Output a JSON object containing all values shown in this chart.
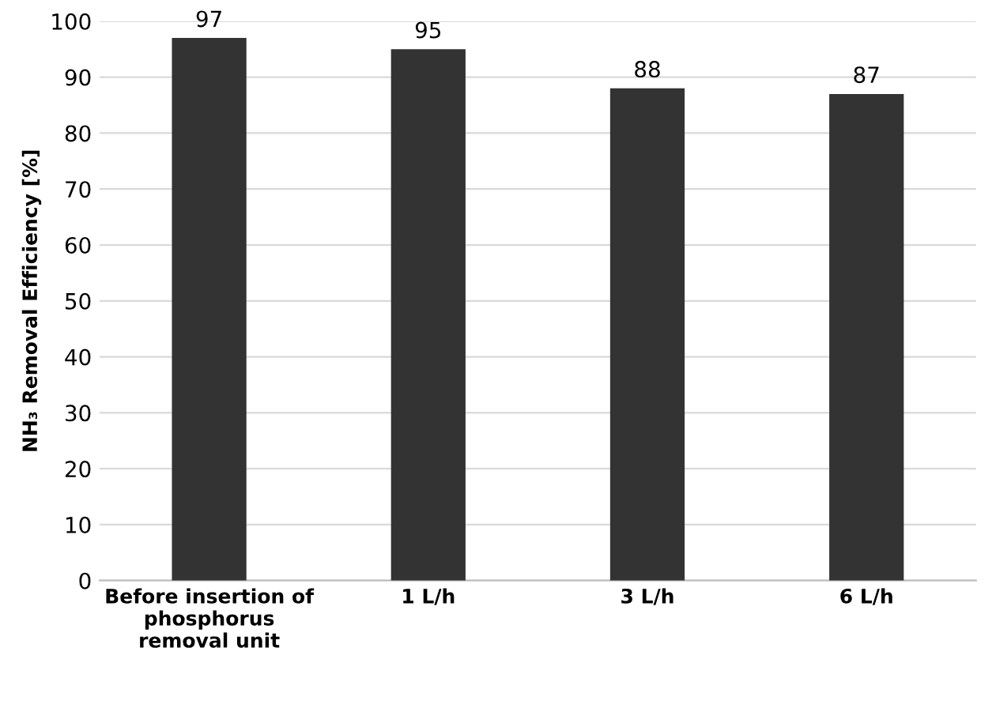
{
  "chart_data": {
    "type": "bar",
    "categories": [
      "Before insertion of\nphosphorus\nremoval unit",
      "1 L/h",
      "3 L/h",
      "6 L/h"
    ],
    "values": [
      97,
      95,
      88,
      87
    ],
    "color": "#333333",
    "ylabel": "NH₃ Removal Efficiency [%]",
    "ylim": [
      0,
      100
    ],
    "yticks": [
      0,
      10,
      20,
      30,
      40,
      50,
      60,
      70,
      80,
      90,
      100
    ],
    "grid": "y",
    "data_labels": true
  }
}
